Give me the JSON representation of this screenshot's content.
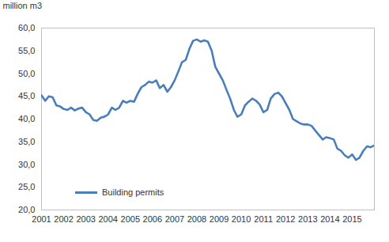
{
  "chart_data": {
    "type": "line",
    "ylabel": "million m3",
    "x": [
      2001,
      2001.17,
      2001.33,
      2001.5,
      2001.67,
      2001.83,
      2002,
      2002.17,
      2002.33,
      2002.5,
      2002.67,
      2002.83,
      2003,
      2003.17,
      2003.33,
      2003.5,
      2003.67,
      2003.83,
      2004,
      2004.17,
      2004.33,
      2004.5,
      2004.67,
      2004.83,
      2005,
      2005.17,
      2005.33,
      2005.5,
      2005.67,
      2005.83,
      2006,
      2006.17,
      2006.33,
      2006.5,
      2006.67,
      2006.83,
      2007,
      2007.17,
      2007.33,
      2007.5,
      2007.67,
      2007.83,
      2008,
      2008.17,
      2008.33,
      2008.5,
      2008.67,
      2008.83,
      2009,
      2009.17,
      2009.33,
      2009.5,
      2009.67,
      2009.83,
      2010,
      2010.17,
      2010.33,
      2010.5,
      2010.67,
      2010.83,
      2011,
      2011.17,
      2011.33,
      2011.5,
      2011.67,
      2011.83,
      2012,
      2012.17,
      2012.33,
      2012.5,
      2012.67,
      2012.83,
      2013,
      2013.17,
      2013.33,
      2013.5,
      2013.67,
      2013.83,
      2014,
      2014.17,
      2014.33,
      2014.5,
      2014.67,
      2014.83,
      2015,
      2015.17,
      2015.33,
      2015.5,
      2015.67,
      2015.83,
      2016
    ],
    "series": [
      {
        "name": "Building permits",
        "color": "#4a7ebb",
        "values": [
          45.2,
          44.0,
          45.0,
          44.8,
          43.0,
          42.8,
          42.2,
          42.0,
          42.5,
          41.9,
          42.3,
          42.5,
          41.5,
          41.0,
          39.8,
          39.6,
          40.3,
          40.5,
          41.0,
          42.5,
          42.0,
          42.5,
          44.0,
          43.6,
          44.0,
          43.8,
          45.5,
          47.0,
          47.5,
          48.2,
          48.0,
          48.5,
          46.8,
          47.5,
          46.0,
          47.0,
          48.5,
          50.5,
          52.5,
          53.0,
          55.5,
          57.2,
          57.5,
          57.0,
          57.3,
          57.0,
          55.0,
          51.5,
          50.0,
          48.5,
          46.5,
          44.5,
          42.0,
          40.5,
          41.0,
          43.0,
          43.8,
          44.5,
          44.0,
          43.2,
          41.5,
          42.0,
          44.5,
          45.5,
          45.8,
          45.0,
          43.5,
          42.0,
          40.0,
          39.5,
          39.0,
          38.8,
          38.8,
          38.5,
          37.5,
          36.5,
          35.5,
          36.0,
          35.8,
          35.5,
          33.5,
          33.0,
          32.0,
          31.5,
          32.2,
          31.0,
          31.5,
          33.0,
          34.0,
          33.8,
          34.2
        ]
      }
    ],
    "xlim": [
      2001,
      2016
    ],
    "xticks": [
      2001,
      2002,
      2003,
      2004,
      2005,
      2006,
      2007,
      2008,
      2009,
      2010,
      2011,
      2012,
      2013,
      2014,
      2015
    ],
    "ylim": [
      20,
      60
    ],
    "yticks": [
      {
        "value": 20,
        "label": "20,0"
      },
      {
        "value": 25,
        "label": "25,0"
      },
      {
        "value": 30,
        "label": "30,0"
      },
      {
        "value": 35,
        "label": "35,0"
      },
      {
        "value": 40,
        "label": "40,0"
      },
      {
        "value": 45,
        "label": "45,0"
      },
      {
        "value": 50,
        "label": "50,0"
      },
      {
        "value": 55,
        "label": "55,0"
      },
      {
        "value": 60,
        "label": "60,0"
      }
    ],
    "grid": false,
    "legend": "bottom-left"
  }
}
